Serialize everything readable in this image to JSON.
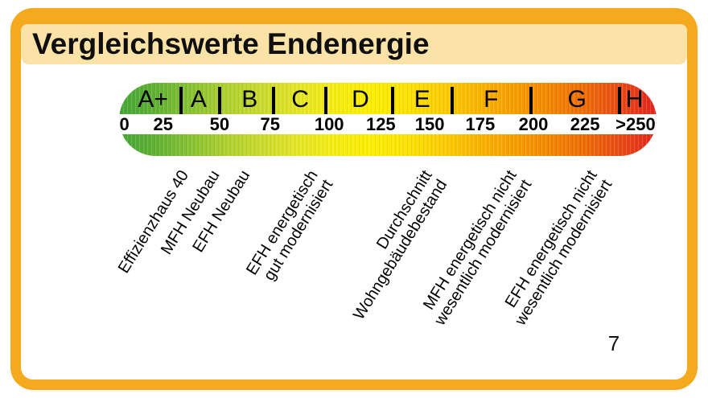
{
  "title": "Vergleichswerte Endenergie",
  "page_number": "7",
  "colors": {
    "card_border": "#F5A91E",
    "header_bg": "#FBE2A7",
    "text": "#111111",
    "scale_gradient": [
      "#45a637",
      "#5fb133",
      "#87c231",
      "#aed02f",
      "#cbdb2d",
      "#e4e526",
      "#f4ec12",
      "#fcee00",
      "#fce300",
      "#fcce00",
      "#fab400",
      "#f79e00",
      "#f38700",
      "#ee6c07",
      "#e84a16",
      "#e2241c"
    ]
  },
  "chart_data": {
    "type": "scale",
    "title": "Vergleichswerte Endenergie",
    "axis": {
      "min": 0,
      "max": 250,
      "tick_step": 25,
      "last_tick_open_ended": true
    },
    "classes": [
      {
        "label": "A+",
        "x_pct": 6.3
      },
      {
        "label": "A",
        "x_pct": 14.8
      },
      {
        "label": "B",
        "x_pct": 24.3
      },
      {
        "label": "C",
        "x_pct": 33.7
      },
      {
        "label": "D",
        "x_pct": 44.9
      },
      {
        "label": "E",
        "x_pct": 56.4
      },
      {
        "label": "F",
        "x_pct": 69.2
      },
      {
        "label": "G",
        "x_pct": 85.2
      },
      {
        "label": "H",
        "x_pct": 95.9
      }
    ],
    "dividers_pct": [
      11.5,
      18.7,
      28.7,
      38.5,
      50.9,
      62.0,
      76.6,
      93.1
    ],
    "ticks": [
      {
        "label": "0",
        "x_pct": 1.0
      },
      {
        "label": "25",
        "x_pct": 8.2
      },
      {
        "label": "50",
        "x_pct": 18.7
      },
      {
        "label": "75",
        "x_pct": 28.1
      },
      {
        "label": "100",
        "x_pct": 39.1
      },
      {
        "label": "125",
        "x_pct": 48.7
      },
      {
        "label": "150",
        "x_pct": 57.8
      },
      {
        "label": "175",
        "x_pct": 67.2
      },
      {
        "label": "200",
        "x_pct": 77.1
      },
      {
        "label": "225",
        "x_pct": 86.7
      },
      {
        "label": ">250",
        "x_pct": 96.1
      }
    ],
    "markers": [
      {
        "lines": [
          "Effizienzhaus 40"
        ],
        "x_pct": 10.8
      },
      {
        "lines": [
          "MFH Neubau"
        ],
        "x_pct": 16.6
      },
      {
        "lines": [
          "EFH Neubau"
        ],
        "x_pct": 22.2
      },
      {
        "lines": [
          "EFH energetisch",
          "gut modernisiert"
        ],
        "x_pct": 34.9
      },
      {
        "lines": [
          "Durchschnitt",
          "Wohngebäudebestand"
        ],
        "x_pct": 56.1
      },
      {
        "lines": [
          "MFH energetisch nicht",
          "wesentlich modernisiert"
        ],
        "x_pct": 71.9
      },
      {
        "lines": [
          "EFH energetisch nicht",
          "wesentlich modernisiert"
        ],
        "x_pct": 86.8
      }
    ]
  }
}
